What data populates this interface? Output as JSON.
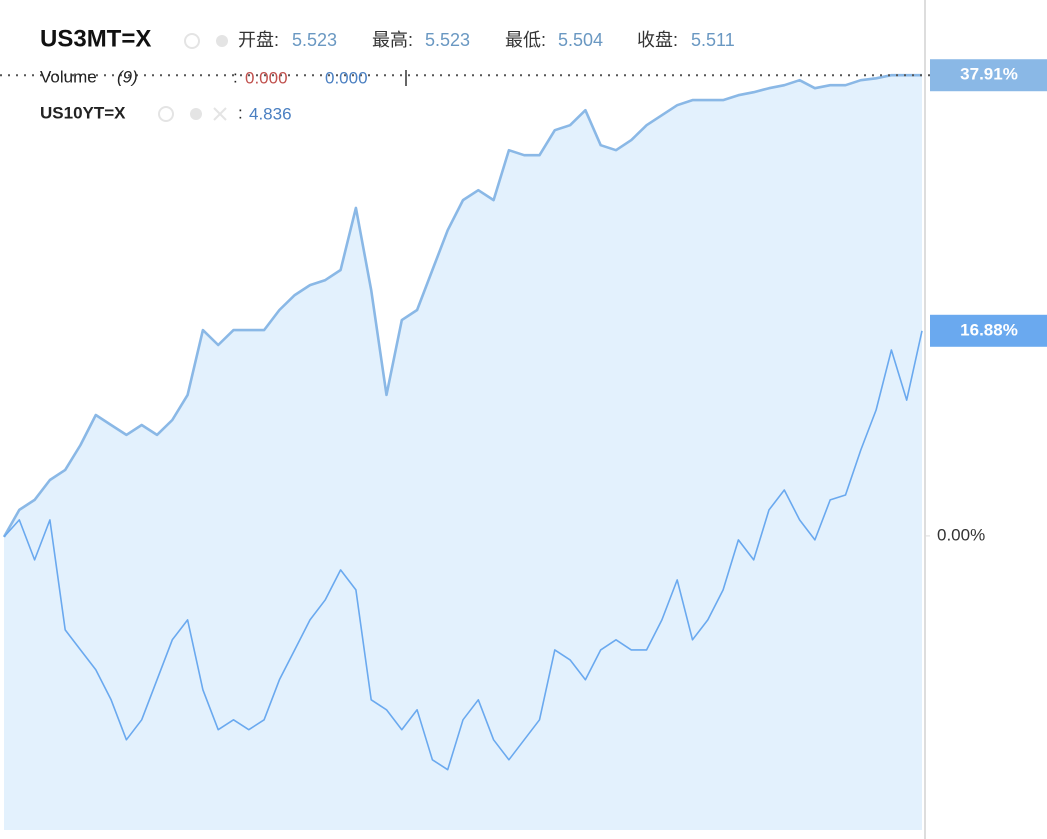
{
  "chart_data": {
    "type": "line",
    "title": "US3MT=X",
    "ohlc": [
      {
        "label": "开盘:",
        "value": "5.523"
      },
      {
        "label": "最高:",
        "value": "5.523"
      },
      {
        "label": "最低:",
        "value": "5.504"
      },
      {
        "label": "收盘:",
        "value": "5.511"
      }
    ],
    "volume": {
      "label": "Volume",
      "param": "(9)",
      "colon": ":",
      "values": [
        "0.000",
        "0.000"
      ]
    },
    "compare": {
      "label": "US10YT=X",
      "colon": ":",
      "value": "4.836"
    },
    "ylim": [
      -24.2,
      44.1
    ],
    "yticks": [
      {
        "value": 0,
        "label": "0.00%"
      }
    ],
    "series": [
      {
        "name": "US3MT=X",
        "color": "#8ab8e6",
        "fill": "#e3f1fd",
        "last_value": {
          "value": 37.91,
          "label": "37.91%"
        },
        "values": [
          -0.08,
          2.14,
          2.96,
          4.6,
          5.43,
          7.48,
          9.95,
          9.13,
          8.31,
          9.13,
          8.31,
          9.54,
          11.6,
          16.94,
          15.71,
          16.94,
          16.94,
          16.94,
          18.59,
          19.82,
          20.64,
          21.05,
          21.88,
          26.99,
          20.23,
          11.6,
          17.76,
          18.59,
          21.88,
          25.16,
          27.63,
          28.45,
          27.63,
          31.74,
          31.33,
          31.33,
          33.39,
          33.8,
          35.03,
          32.15,
          31.74,
          32.57,
          33.8,
          34.62,
          35.44,
          35.86,
          35.86,
          35.86,
          36.27,
          36.51,
          36.84,
          37.09,
          37.5,
          36.84,
          37.09,
          37.09,
          37.5,
          37.66,
          37.91,
          37.91,
          37.91
        ]
      },
      {
        "name": "US10YT=X",
        "color": "#6aa9ef",
        "last_value": {
          "value": 16.88,
          "label": "16.88%"
        },
        "values": [
          -0.08,
          1.32,
          -1.97,
          1.32,
          -7.73,
          -9.38,
          -11.02,
          -13.49,
          -16.78,
          -15.13,
          -11.84,
          -8.55,
          -6.91,
          -12.66,
          -15.95,
          -15.13,
          -15.95,
          -15.13,
          -11.84,
          -9.38,
          -6.91,
          -5.26,
          -2.8,
          -4.44,
          -13.49,
          -14.31,
          -15.95,
          -14.31,
          -18.42,
          -19.24,
          -15.13,
          -13.49,
          -16.78,
          -18.42,
          -16.78,
          -15.13,
          -9.38,
          -10.2,
          -11.84,
          -9.38,
          -8.55,
          -9.38,
          -9.38,
          -6.91,
          -3.62,
          -8.55,
          -6.91,
          -4.44,
          -0.33,
          -1.97,
          2.14,
          3.78,
          1.32,
          -0.33,
          2.96,
          3.37,
          7.07,
          10.36,
          15.3,
          11.18,
          16.88
        ]
      }
    ]
  }
}
